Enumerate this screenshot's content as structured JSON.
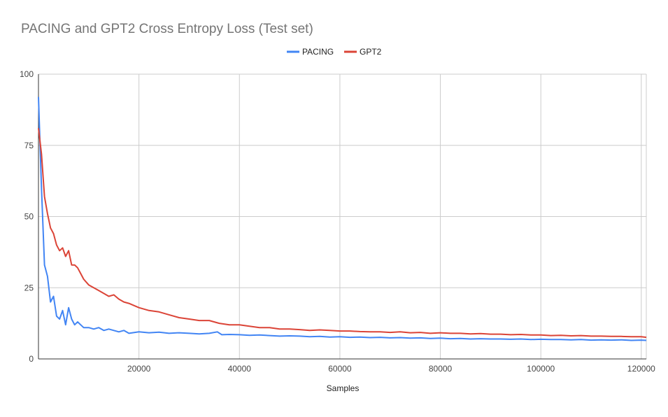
{
  "chart_data": {
    "type": "line",
    "title": "PACING and GPT2 Cross Entropy Loss (Test set)",
    "xlabel": "Samples",
    "ylabel": "",
    "xlim": [
      0,
      121000
    ],
    "ylim": [
      0,
      100
    ],
    "x_ticks": [
      20000,
      40000,
      60000,
      80000,
      100000,
      120000
    ],
    "x_tick_labels": [
      "20000",
      "40000",
      "60000",
      "80000",
      "100000",
      "120000"
    ],
    "y_ticks": [
      0,
      25,
      50,
      75,
      100
    ],
    "y_tick_labels": [
      "0",
      "25",
      "50",
      "75",
      "100"
    ],
    "grid": true,
    "legend_position": "top-center",
    "series": [
      {
        "name": "PACING",
        "color": "#4285f4",
        "x": [
          0,
          600,
          1200,
          1800,
          2400,
          3000,
          3600,
          4200,
          4800,
          5400,
          6000,
          6600,
          7200,
          7800,
          8400,
          9000,
          10000,
          11000,
          12000,
          13000,
          14000,
          15000,
          16000,
          17000,
          18000,
          20000,
          22000,
          24000,
          26000,
          28000,
          30000,
          32000,
          34000,
          35600,
          36500,
          38000,
          40000,
          42000,
          44000,
          46000,
          48000,
          50000,
          52000,
          54000,
          56000,
          58000,
          60000,
          62000,
          64000,
          66000,
          68000,
          70000,
          72000,
          74000,
          76000,
          78000,
          80000,
          82000,
          84000,
          86000,
          88000,
          90000,
          92000,
          94000,
          96000,
          98000,
          100000,
          102000,
          104000,
          106000,
          108000,
          110000,
          112000,
          114000,
          116000,
          118000,
          120000,
          121000
        ],
        "values": [
          92,
          60,
          33,
          29,
          20,
          22,
          15,
          14,
          17,
          12,
          18,
          14,
          12,
          13,
          12,
          11,
          11,
          10.5,
          11,
          10,
          10.5,
          10,
          9.5,
          10,
          9,
          9.5,
          9.2,
          9.4,
          9,
          9.2,
          9,
          8.8,
          9,
          9.5,
          8.5,
          8.6,
          8.5,
          8.3,
          8.4,
          8.2,
          8,
          8.1,
          8,
          7.8,
          7.9,
          7.7,
          7.8,
          7.6,
          7.7,
          7.5,
          7.6,
          7.4,
          7.5,
          7.3,
          7.4,
          7.2,
          7.3,
          7.1,
          7.2,
          7,
          7.1,
          7,
          7,
          6.9,
          7,
          6.8,
          6.9,
          6.8,
          6.8,
          6.7,
          6.8,
          6.6,
          6.7,
          6.6,
          6.7,
          6.5,
          6.6,
          6.5
        ]
      },
      {
        "name": "GPT2",
        "color": "#db4437",
        "x": [
          0,
          600,
          1200,
          1800,
          2400,
          3000,
          3600,
          4200,
          4800,
          5400,
          6000,
          6600,
          7200,
          7800,
          8400,
          9000,
          10000,
          11000,
          12000,
          13000,
          14000,
          15000,
          16000,
          17000,
          18000,
          20000,
          22000,
          24000,
          26000,
          28000,
          30000,
          32000,
          34000,
          36000,
          38000,
          40000,
          42000,
          44000,
          46000,
          48000,
          50000,
          52000,
          54000,
          56000,
          58000,
          60000,
          62000,
          64000,
          66000,
          68000,
          70000,
          72000,
          74000,
          76000,
          78000,
          80000,
          82000,
          84000,
          86000,
          88000,
          90000,
          92000,
          94000,
          96000,
          98000,
          100000,
          102000,
          104000,
          106000,
          108000,
          110000,
          112000,
          114000,
          116000,
          118000,
          120000,
          121000
        ],
        "values": [
          81,
          72,
          57,
          51,
          46,
          44,
          40,
          38,
          39,
          36,
          38,
          33,
          33,
          32,
          30,
          28,
          26,
          25,
          24,
          23,
          22,
          22.5,
          21,
          20,
          19.5,
          18,
          17,
          16.5,
          15.5,
          14.5,
          14,
          13.5,
          13.5,
          12.5,
          12,
          12,
          11.5,
          11,
          11,
          10.5,
          10.5,
          10.3,
          10,
          10.2,
          10,
          9.8,
          9.8,
          9.6,
          9.5,
          9.5,
          9.3,
          9.5,
          9.2,
          9.3,
          9,
          9.2,
          9,
          9,
          8.8,
          8.9,
          8.7,
          8.7,
          8.5,
          8.6,
          8.4,
          8.4,
          8.2,
          8.3,
          8.1,
          8.2,
          8,
          8,
          7.9,
          7.9,
          7.8,
          7.8,
          7.6
        ]
      }
    ]
  }
}
